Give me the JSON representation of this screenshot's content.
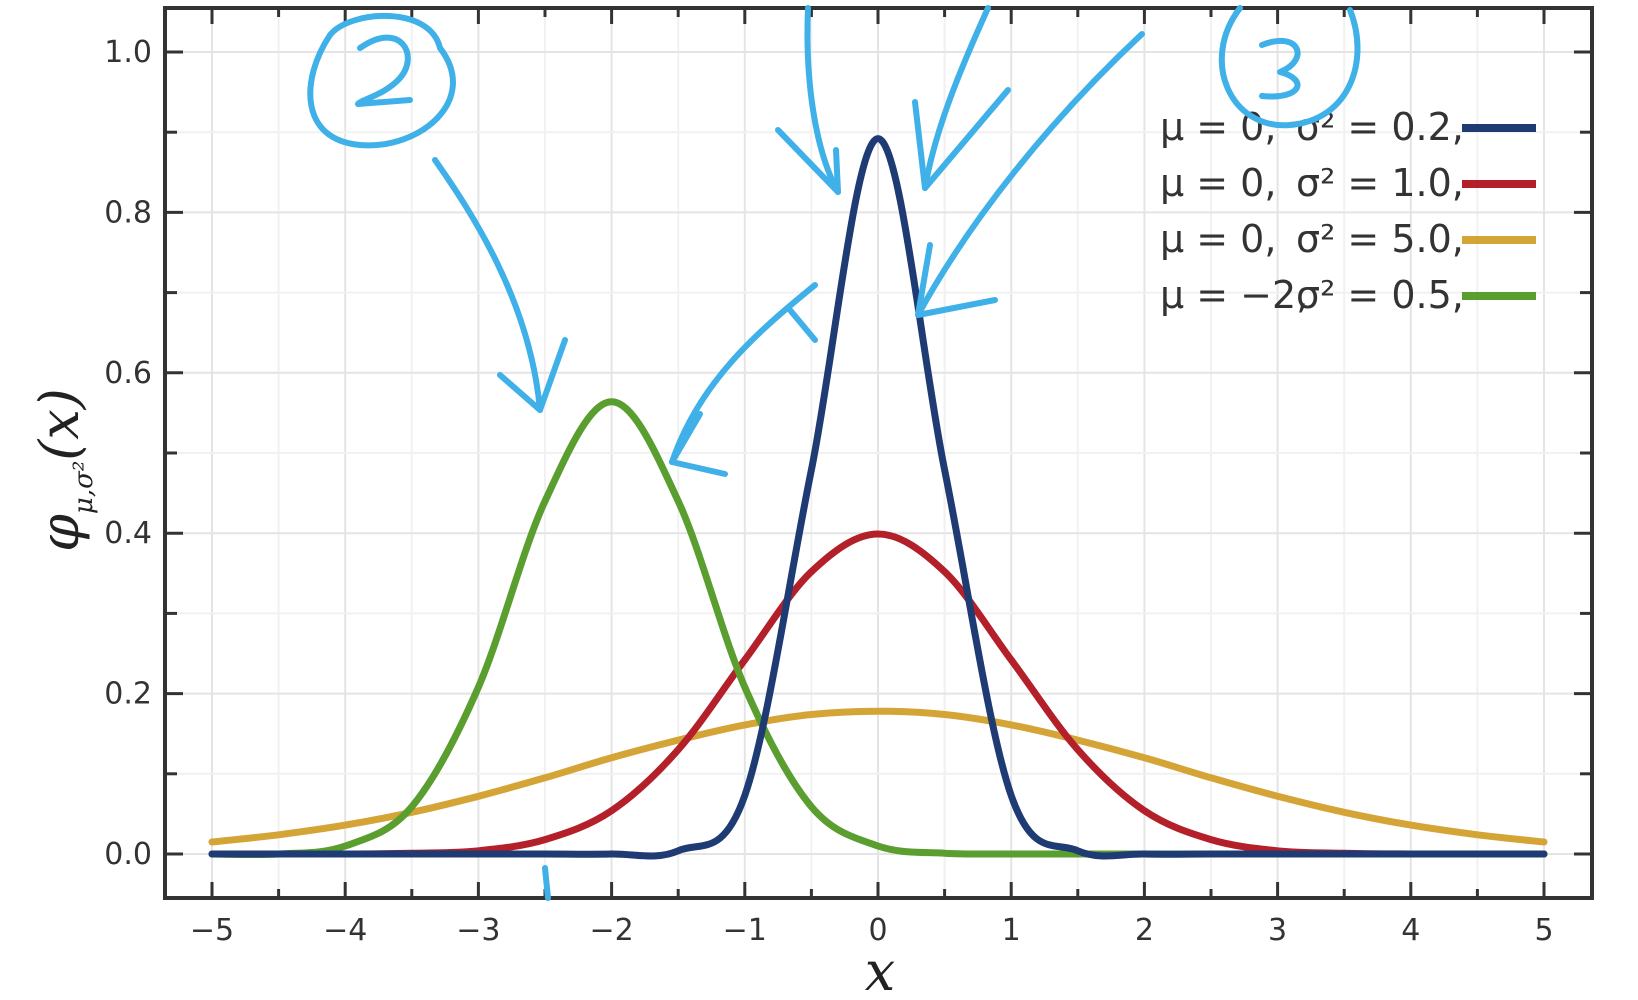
{
  "chart_data": {
    "type": "line",
    "title": "",
    "xlabel": "x",
    "ylabel": "φ_{μ,σ²}(x)",
    "ylabel_parts": {
      "main": "φ",
      "sub": "μ,σ²",
      "arg": "(x)"
    },
    "xlim": [
      -5,
      5
    ],
    "ylim": [
      -0.05,
      1.05
    ],
    "x_ticks": [
      "−5",
      "−4",
      "−3",
      "−2",
      "−1",
      "0",
      "1",
      "2",
      "3",
      "4",
      "5"
    ],
    "y_ticks": [
      "0.0",
      "0.2",
      "0.4",
      "0.6",
      "0.8",
      "1.0"
    ],
    "grid": true,
    "legend_position": "top-right",
    "x": [
      -5,
      -4.5,
      -4,
      -3.5,
      -3,
      -2.5,
      -2,
      -1.5,
      -1,
      -0.5,
      0,
      0.5,
      1,
      1.5,
      2,
      2.5,
      3,
      3.5,
      4,
      4.5,
      5
    ],
    "series": [
      {
        "legend_mu": "μ = 0,",
        "legend_sigma": "σ² = 0.2,",
        "color": "#1f3b73",
        "values": [
          0,
          0,
          0,
          0,
          0,
          0,
          0,
          0.004,
          0.073,
          0.479,
          0.892,
          0.479,
          0.073,
          0.004,
          0,
          0,
          0,
          0,
          0,
          0,
          0
        ]
      },
      {
        "legend_mu": "μ = 0,",
        "legend_sigma": "σ² = 1.0,",
        "color": "#b3202a",
        "values": [
          0,
          0,
          0,
          0.001,
          0.004,
          0.018,
          0.054,
          0.13,
          0.242,
          0.352,
          0.399,
          0.352,
          0.242,
          0.13,
          0.054,
          0.018,
          0.004,
          0.001,
          0,
          0,
          0
        ]
      },
      {
        "legend_mu": "μ = 0,",
        "legend_sigma": "σ² = 5.0,",
        "color": "#d4a437",
        "values": [
          0.015,
          0.024,
          0.036,
          0.052,
          0.072,
          0.095,
          0.12,
          0.142,
          0.161,
          0.174,
          0.178,
          0.174,
          0.161,
          0.142,
          0.12,
          0.095,
          0.072,
          0.052,
          0.036,
          0.024,
          0.015
        ]
      },
      {
        "legend_mu": "μ = −2,",
        "legend_sigma": "σ² = 0.5,",
        "color": "#5a9e2f",
        "values": [
          0,
          0,
          0.01,
          0.059,
          0.208,
          0.44,
          0.564,
          0.44,
          0.208,
          0.059,
          0.01,
          0.001,
          0,
          0,
          0,
          0,
          0,
          0,
          0,
          0,
          0
        ]
      }
    ],
    "annotations": [
      {
        "text": "2",
        "kind": "handwritten-circled-number",
        "color": "#3fb0e8"
      },
      {
        "text": "3",
        "kind": "handwritten-circled-number",
        "color": "#3fb0e8"
      }
    ]
  }
}
